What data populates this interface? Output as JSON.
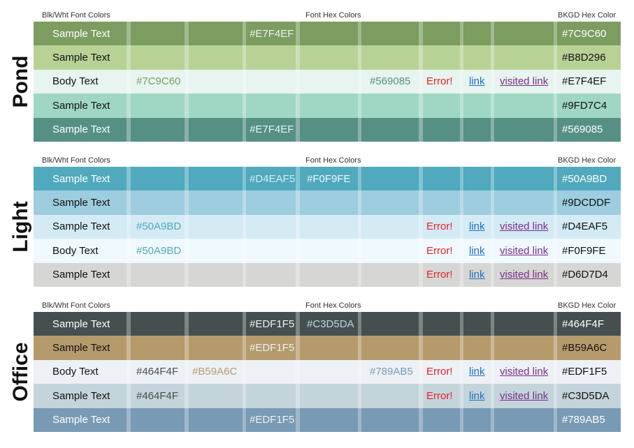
{
  "headers": {
    "left": "Blk/Wht Font Colors",
    "middle": "Font Hex Colors",
    "right": "BKGD Hex Color"
  },
  "sections": [
    {
      "name": "Pond",
      "rows": [
        {
          "bg": "#7C9C60",
          "cells": [
            {
              "text": "Sample Text",
              "color": "#FFFFFF"
            },
            null,
            null,
            {
              "text": "#E7F4EF",
              "color": "#E7F4EF"
            },
            null,
            null,
            null,
            null,
            null,
            {
              "text": "#7C9C60",
              "color": "#FFFFFF"
            }
          ]
        },
        {
          "bg": "#B8D296",
          "cells": [
            {
              "text": "Sample Text",
              "color": "#111111"
            },
            null,
            null,
            null,
            null,
            null,
            null,
            null,
            null,
            {
              "text": "#B8D296",
              "color": "#111111"
            }
          ]
        },
        {
          "bg": "#E7F4EF",
          "cells": [
            {
              "text": "Body Text",
              "color": "#111111"
            },
            {
              "text": "#7C9C60",
              "color": "#7C9C60"
            },
            null,
            null,
            null,
            {
              "text": "#569085",
              "color": "#569085"
            },
            {
              "text": "Error!",
              "color": "#E8202A"
            },
            {
              "text": "link",
              "color": "#1F6FC5",
              "link": true
            },
            {
              "text": "visited link",
              "color": "#7B2D8B",
              "link": true
            },
            {
              "text": "#E7F4EF",
              "color": "#111111"
            }
          ]
        },
        {
          "bg": "#9FD7C4",
          "cells": [
            {
              "text": "Sample Text",
              "color": "#111111"
            },
            null,
            null,
            null,
            null,
            null,
            null,
            null,
            null,
            {
              "text": "#9FD7C4",
              "color": "#111111"
            }
          ]
        },
        {
          "bg": "#569085",
          "cells": [
            {
              "text": "Sample Text",
              "color": "#FFFFFF"
            },
            null,
            null,
            {
              "text": "#E7F4EF",
              "color": "#E7F4EF"
            },
            null,
            null,
            null,
            null,
            null,
            {
              "text": "#569085",
              "color": "#FFFFFF"
            }
          ]
        }
      ]
    },
    {
      "name": "Light",
      "rows": [
        {
          "bg": "#50A9BD",
          "cells": [
            {
              "text": "Sample Text",
              "color": "#FFFFFF"
            },
            null,
            null,
            {
              "text": "#D4EAF5",
              "color": "#D4EAF5"
            },
            {
              "text": "#F0F9FE",
              "color": "#F0F9FE"
            },
            null,
            null,
            null,
            null,
            {
              "text": "#50A9BD",
              "color": "#FFFFFF"
            }
          ]
        },
        {
          "bg": "#9DCDDF",
          "cells": [
            {
              "text": "Sample Text",
              "color": "#111111"
            },
            null,
            null,
            null,
            null,
            null,
            null,
            null,
            null,
            {
              "text": "#9DCDDF",
              "color": "#111111"
            }
          ]
        },
        {
          "bg": "#D4EAF5",
          "cells": [
            {
              "text": "Sample Text",
              "color": "#111111"
            },
            {
              "text": "#50A9BD",
              "color": "#50A9BD"
            },
            null,
            null,
            null,
            null,
            {
              "text": "Error!",
              "color": "#E8202A"
            },
            {
              "text": "link",
              "color": "#1F6FC5",
              "link": true
            },
            {
              "text": "visited link",
              "color": "#7B2D8B",
              "link": true
            },
            {
              "text": "#D4EAF5",
              "color": "#111111"
            }
          ]
        },
        {
          "bg": "#F0F9FE",
          "cells": [
            {
              "text": "Body Text",
              "color": "#111111"
            },
            {
              "text": "#50A9BD",
              "color": "#50A9BD"
            },
            null,
            null,
            null,
            null,
            {
              "text": "Error!",
              "color": "#E8202A"
            },
            {
              "text": "link",
              "color": "#1F6FC5",
              "link": true
            },
            {
              "text": "visited link",
              "color": "#7B2D8B",
              "link": true
            },
            {
              "text": "#F0F9FE",
              "color": "#111111"
            }
          ]
        },
        {
          "bg": "#D6D7D4",
          "cells": [
            {
              "text": "Sample Text",
              "color": "#111111"
            },
            null,
            null,
            null,
            null,
            null,
            {
              "text": "Error!",
              "color": "#E8202A"
            },
            {
              "text": "link",
              "color": "#1F6FC5",
              "link": true
            },
            {
              "text": "visited link",
              "color": "#7B2D8B",
              "link": true
            },
            {
              "text": "#D6D7D4",
              "color": "#111111"
            }
          ]
        }
      ]
    },
    {
      "name": "Office",
      "rows": [
        {
          "bg": "#464F4F",
          "cells": [
            {
              "text": "Sample Text",
              "color": "#FFFFFF"
            },
            null,
            null,
            {
              "text": "#EDF1F5",
              "color": "#EDF1F5"
            },
            {
              "text": "#C3D5DA",
              "color": "#C3D5DA"
            },
            null,
            null,
            null,
            null,
            {
              "text": "#464F4F",
              "color": "#FFFFFF"
            }
          ]
        },
        {
          "bg": "#B59A6C",
          "cells": [
            {
              "text": "Sample Text",
              "color": "#111111"
            },
            null,
            null,
            {
              "text": "#EDF1F5",
              "color": "#EDF1F5"
            },
            null,
            null,
            null,
            null,
            null,
            {
              "text": "#B59A6C",
              "color": "#111111"
            }
          ]
        },
        {
          "bg": "#EDF1F5",
          "cells": [
            {
              "text": "Body Text",
              "color": "#111111"
            },
            {
              "text": "#464F4F",
              "color": "#464F4F"
            },
            {
              "text": "#B59A6C",
              "color": "#B59A6C"
            },
            null,
            null,
            {
              "text": "#789AB5",
              "color": "#789AB5"
            },
            {
              "text": "Error!",
              "color": "#E8202A"
            },
            {
              "text": "link",
              "color": "#1F6FC5",
              "link": true
            },
            {
              "text": "visited link",
              "color": "#7B2D8B",
              "link": true
            },
            {
              "text": "#EDF1F5",
              "color": "#111111"
            }
          ]
        },
        {
          "bg": "#C3D5DA",
          "cells": [
            {
              "text": "Sample Text",
              "color": "#111111"
            },
            {
              "text": "#464F4F",
              "color": "#464F4F"
            },
            null,
            null,
            null,
            null,
            {
              "text": "Error!",
              "color": "#E8202A"
            },
            {
              "text": "link",
              "color": "#1F6FC5",
              "link": true
            },
            {
              "text": "visited link",
              "color": "#7B2D8B",
              "link": true
            },
            {
              "text": "#C3D5DA",
              "color": "#111111"
            }
          ]
        },
        {
          "bg": "#789AB5",
          "cells": [
            {
              "text": "Sample Text",
              "color": "#FFFFFF"
            },
            null,
            null,
            {
              "text": "#EDF1F5",
              "color": "#EDF1F5"
            },
            null,
            null,
            null,
            null,
            null,
            {
              "text": "#789AB5",
              "color": "#FFFFFF"
            }
          ]
        }
      ]
    }
  ]
}
